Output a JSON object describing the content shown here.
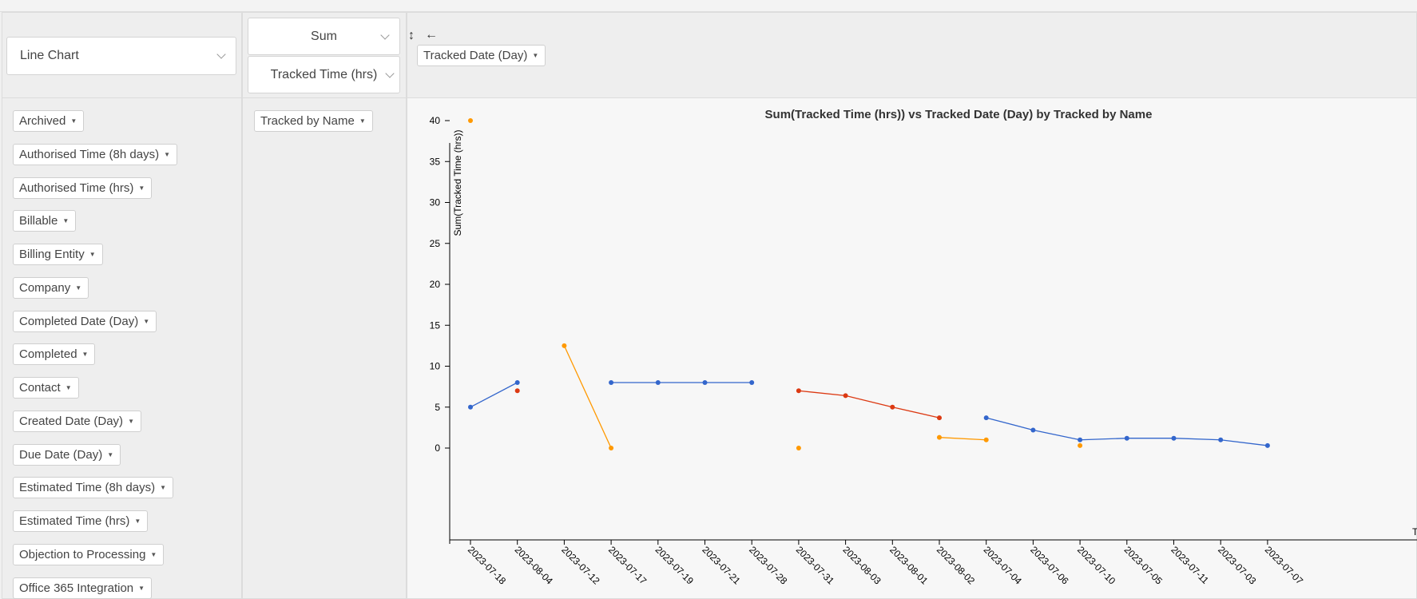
{
  "renderer": {
    "label": "Line Chart"
  },
  "aggregator": {
    "label": "Sum",
    "value_field": "Tracked Time (hrs)"
  },
  "axis_controls": {
    "swap_icon": "↕",
    "back_icon": "←"
  },
  "col_fields": [
    "Tracked Date (Day)"
  ],
  "row_fields": [
    "Tracked by Name"
  ],
  "attributes": [
    "Archived",
    "Authorised Time (8h days)",
    "Authorised Time (hrs)",
    "Billable",
    "Billing Entity",
    "Company",
    "Completed Date (Day)",
    "Completed",
    "Contact",
    "Created Date (Day)",
    "Due Date (Day)",
    "Estimated Time (8h days)",
    "Estimated Time (hrs)",
    "Objection to Processing",
    "Office 365 Integration"
  ],
  "chart_data": {
    "type": "line",
    "title": "Sum(Tracked Time (hrs)) vs Tracked Date (Day) by Tracked by Name",
    "xlabel": "T",
    "ylabel": "Sum(Tracked Time (hrs))",
    "ylim": [
      -4,
      44
    ],
    "yticks": [
      0,
      5,
      10,
      15,
      20,
      25,
      30,
      35,
      40
    ],
    "categories": [
      "2023-07-18",
      "2023-08-04",
      "2023-07-12",
      "2023-07-17",
      "2023-07-19",
      "2023-07-21",
      "2023-07-28",
      "2023-07-31",
      "2023-08-03",
      "2023-08-01",
      "2023-08-02",
      "2023-07-04",
      "2023-07-06",
      "2023-07-10",
      "2023-07-05",
      "2023-07-11",
      "2023-07-03",
      "2023-07-07"
    ],
    "series": [
      {
        "color": "#3366cc",
        "values": [
          5,
          8,
          null,
          8,
          8,
          8,
          8,
          null,
          null,
          null,
          null,
          3.7,
          2.2,
          1.0,
          1.2,
          1.2,
          1.0,
          0.3
        ]
      },
      {
        "color": "#dc3912",
        "values": [
          null,
          7,
          null,
          null,
          null,
          null,
          null,
          7,
          6.4,
          5,
          3.7,
          null,
          null,
          null,
          null,
          null,
          null,
          null
        ]
      },
      {
        "color": "#ff9900",
        "values": [
          40,
          null,
          12.5,
          0,
          null,
          null,
          null,
          0,
          null,
          null,
          1.3,
          1.0,
          null,
          0.3,
          null,
          null,
          null,
          null
        ]
      }
    ]
  }
}
